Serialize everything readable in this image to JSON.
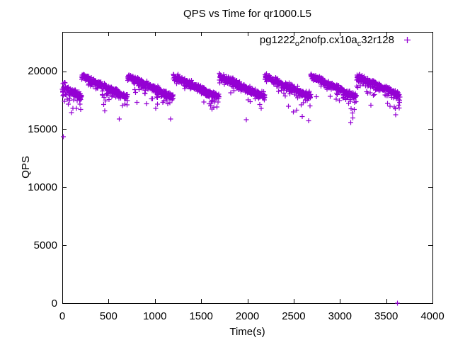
{
  "figure": {
    "background": "#ffffff",
    "text_color": "#000000",
    "axis_color": "#000000"
  },
  "chart_data": {
    "type": "scatter",
    "title": "QPS vs Time for qr1000.L5",
    "xlabel": "Time(s)",
    "ylabel": "QPS",
    "xlim": [
      0,
      4000
    ],
    "ylim": [
      0,
      23390
    ],
    "xticks": [
      0,
      500,
      1000,
      1500,
      2000,
      2500,
      3000,
      3500,
      4000
    ],
    "yticks": [
      0,
      5000,
      10000,
      15000,
      20000
    ],
    "grid": false,
    "legend_position": "top-right-inside",
    "series": [
      {
        "name": "pg1222_o2nofp.cx10a_c32r128",
        "name_parts": [
          {
            "text": "pg1222",
            "sub": false
          },
          {
            "text": "o",
            "sub": true
          },
          {
            "text": "2nofp.cx10a",
            "sub": false
          },
          {
            "text": "c",
            "sub": true
          },
          {
            "text": "32r128",
            "sub": false
          }
        ],
        "marker": "plus",
        "marker_size_px": 7,
        "color": "#9400D3",
        "pattern": {
          "description": "Sawtooth throughput: sharp rise to ~19600 QPS then near-linear decline to ~17800 QPS over each ~495 s cycle, with sparse low-side scatter down to ~15600 growing toward each cycle end.",
          "t_start": 0,
          "t_end": 3648,
          "t_step": 2,
          "first_rise_s": 210,
          "period_s": 495,
          "cycle_start_qps": 19600,
          "cycle_end_qps": 17800,
          "noise_sigma": 140,
          "stripe_prob": 0.25,
          "stripe_drop_min": 100,
          "stripe_drop_range": 200,
          "low_tail_prob_base": 0.03,
          "low_tail_prob_phase": 0.09,
          "low_tail_drop_min": 150,
          "low_tail_drop_range": 1000,
          "deep_drop_prob": 0.012,
          "deep_drop_min": 1200,
          "deep_drop_range": 900,
          "qps_cap": 19950,
          "warmup_t_s": 40,
          "warmup_noise_mult": 2.2,
          "seed": 7
        },
        "outliers": [
          [
            10,
            14350
          ],
          [
            3620,
            0
          ]
        ]
      }
    ]
  }
}
